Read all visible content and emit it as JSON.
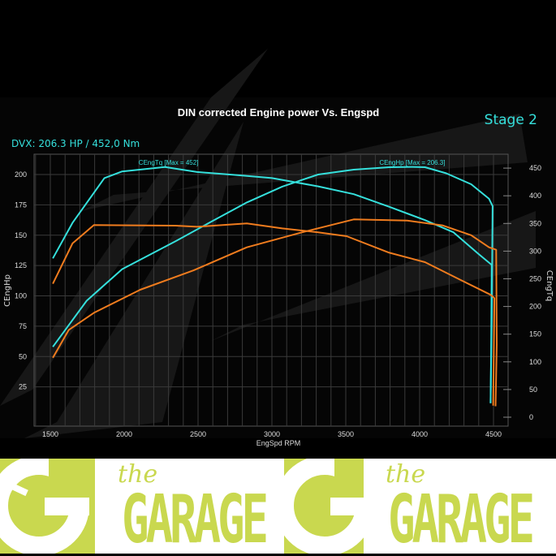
{
  "chart_data": {
    "type": "line",
    "title": "DIN corrected Engine power Vs. Engspd",
    "stage_label": "Stage 2",
    "summary": "DVX:  206.3 HP / 452,0 Nm",
    "xlabel": "EngSpd RPM",
    "ylabel_left": "CEngHp",
    "ylabel_right": "CEngTq",
    "xlim": [
      1400,
      4700
    ],
    "ylim_left": [
      0,
      215
    ],
    "ylim_right": [
      0,
      472
    ],
    "x_ticks": [
      1500,
      2000,
      2500,
      3000,
      3500,
      4000,
      4500
    ],
    "y_ticks_left": [
      25,
      50,
      75,
      100,
      125,
      150,
      175,
      200
    ],
    "y_ticks_right": [
      0,
      50,
      100,
      150,
      200,
      250,
      300,
      350,
      400,
      450
    ],
    "grid": true,
    "annotations": [
      {
        "text": "CEngTq [Max = 452]",
        "x": 2300,
        "series": "tuned-torque"
      },
      {
        "text": "CEngHp [Max = 206.3]",
        "x": 3950,
        "series": "tuned-power"
      }
    ],
    "series": [
      {
        "id": "tuned-torque",
        "axis": "right",
        "color": "#35e0dc",
        "x": [
          1517,
          1650,
          1866,
          1986,
          2276,
          2493,
          2783,
          3000,
          3313,
          3554,
          3795,
          4036,
          4229,
          4398,
          4488,
          4484,
          4480
        ],
        "y": [
          287,
          351,
          432,
          444,
          452,
          443,
          437,
          432,
          417,
          403,
          380,
          356,
          334,
          295,
          275,
          120,
          25
        ]
      },
      {
        "id": "tuned-power",
        "axis": "left",
        "color": "#35e0dc",
        "x": [
          1517,
          1746,
          1986,
          2347,
          2588,
          2830,
          3070,
          3313,
          3554,
          3795,
          3950,
          4036,
          4180,
          4349,
          4470,
          4494,
          4488,
          4480
        ],
        "y": [
          58,
          96,
          122,
          145,
          161,
          177,
          190,
          200,
          204,
          206,
          206.3,
          206,
          201,
          192,
          180,
          174,
          80,
          12
        ]
      },
      {
        "id": "stock-torque",
        "axis": "right",
        "color": "#f07c1e",
        "x": [
          1517,
          1650,
          1795,
          2347,
          2493,
          2830,
          3070,
          3313,
          3506,
          3795,
          4036,
          4277,
          4482,
          4506,
          4502,
          4498
        ],
        "y": [
          241,
          314,
          347,
          346,
          344,
          350,
          341,
          334,
          327,
          297,
          280,
          248,
          221,
          215,
          120,
          21
        ]
      },
      {
        "id": "stock-power",
        "axis": "left",
        "color": "#f07c1e",
        "x": [
          1517,
          1625,
          1795,
          2108,
          2470,
          2830,
          3192,
          3554,
          3916,
          4157,
          4349,
          4470,
          4518,
          4522,
          4514
        ],
        "y": [
          49,
          72,
          86,
          105,
          121,
          140,
          152,
          163,
          162,
          158,
          150,
          140,
          138,
          60,
          9
        ]
      }
    ]
  },
  "branding": {
    "the": "the",
    "garage": "GARAGE",
    "lime": "#c9d84f"
  }
}
